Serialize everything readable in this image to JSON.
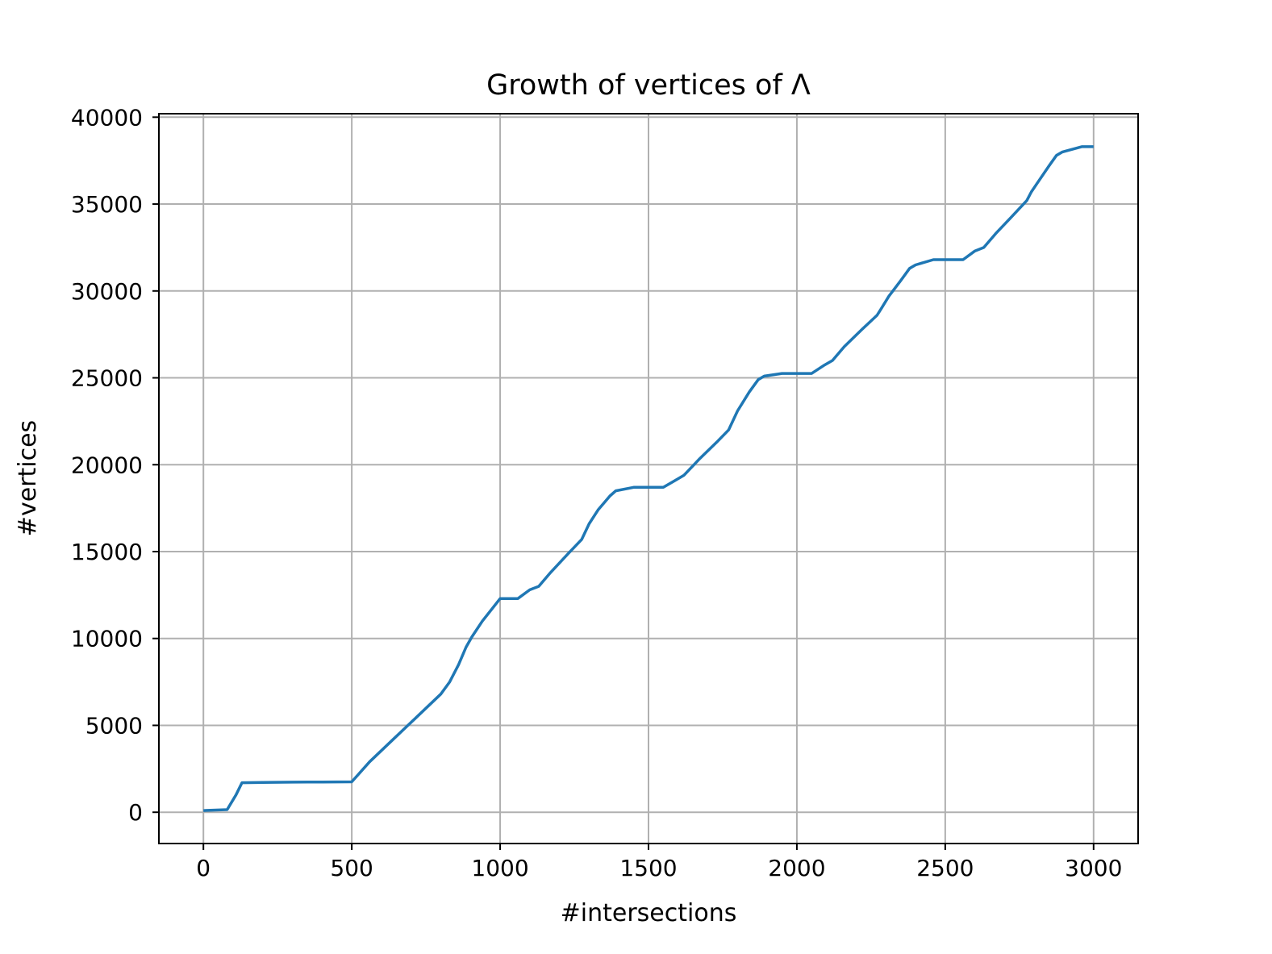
{
  "chart_data": {
    "type": "line",
    "title": "Growth of vertices of Λ",
    "xlabel": "#intersections",
    "ylabel": "#vertices",
    "xlim": [
      -150,
      3150
    ],
    "ylim": [
      -1800,
      40200
    ],
    "xticks": [
      0,
      500,
      1000,
      1500,
      2000,
      2500,
      3000
    ],
    "yticks": [
      0,
      5000,
      10000,
      15000,
      20000,
      25000,
      30000,
      35000,
      40000
    ],
    "grid": true,
    "color": "#1f77b4",
    "series": [
      {
        "x": [
          0,
          80,
          110,
          130,
          200,
          300,
          400,
          500,
          560,
          640,
          720,
          800,
          830,
          860,
          885,
          905,
          940,
          1000,
          1060,
          1100,
          1130,
          1170,
          1230,
          1275,
          1300,
          1330,
          1370,
          1390,
          1450,
          1550,
          1590,
          1620,
          1670,
          1730,
          1770,
          1800,
          1840,
          1870,
          1890,
          1950,
          2050,
          2090,
          2120,
          2160,
          2220,
          2270,
          2285,
          2310,
          2350,
          2380,
          2400,
          2460,
          2560,
          2600,
          2630,
          2670,
          2720,
          2775,
          2790,
          2810,
          2850,
          2875,
          2895,
          2960,
          3000
        ],
        "y": [
          100,
          150,
          1000,
          1700,
          1720,
          1730,
          1740,
          1750,
          2900,
          4200,
          5500,
          6800,
          7500,
          8500,
          9500,
          10100,
          11000,
          12300,
          12300,
          12800,
          13000,
          13800,
          14900,
          15700,
          16600,
          17400,
          18200,
          18500,
          18700,
          18700,
          19100,
          19400,
          20300,
          21300,
          22000,
          23100,
          24200,
          24900,
          25100,
          25250,
          25250,
          25700,
          26000,
          26800,
          27800,
          28600,
          29000,
          29700,
          30600,
          31300,
          31500,
          31800,
          31800,
          32300,
          32500,
          33300,
          34200,
          35200,
          35700,
          36200,
          37200,
          37800,
          38000,
          38300,
          38300
        ]
      }
    ]
  }
}
